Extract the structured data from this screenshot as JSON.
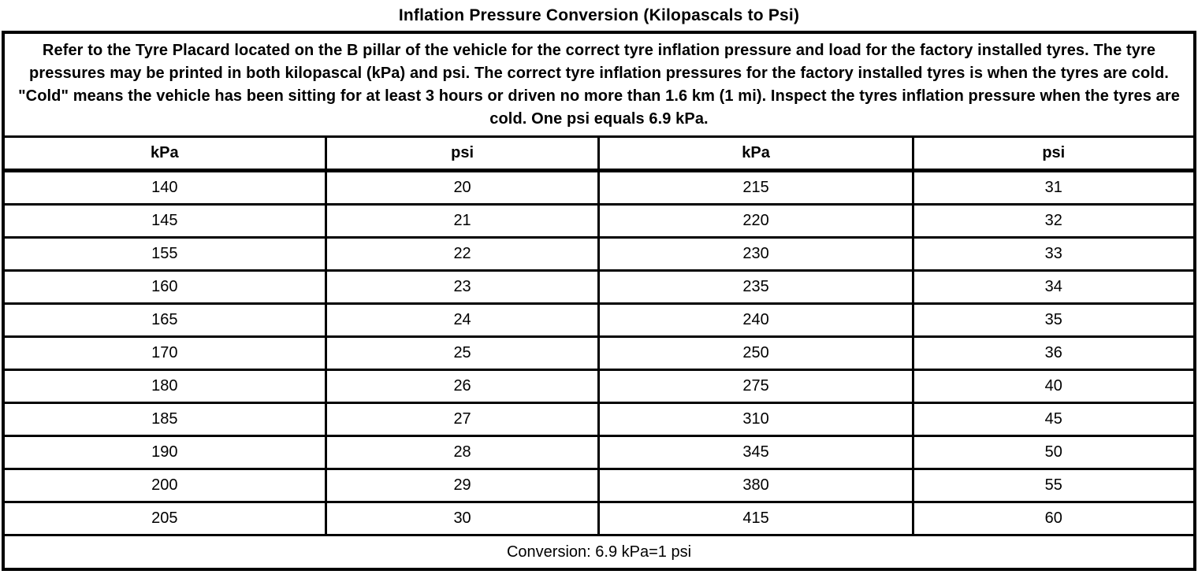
{
  "title": "Inflation Pressure Conversion (Kilopascals to Psi)",
  "intro": "Refer to the Tyre Placard located on the B pillar of the vehicle for the correct tyre inflation pressure and load for the factory installed tyres. The tyre pressures may be printed in both kilopascal (kPa) and psi. The correct tyre inflation pressures for the factory installed tyres is when the tyres are cold. \"Cold\" means the vehicle has been sitting for at least 3 hours or driven no more than 1.6 km (1 mi). Inspect the tyres inflation pressure when the tyres are cold. One psi equals 6.9 kPa.",
  "table": {
    "headers": [
      "kPa",
      "psi",
      "kPa",
      "psi"
    ],
    "rows": [
      [
        "140",
        "20",
        "215",
        "31"
      ],
      [
        "145",
        "21",
        "220",
        "32"
      ],
      [
        "155",
        "22",
        "230",
        "33"
      ],
      [
        "160",
        "23",
        "235",
        "34"
      ],
      [
        "165",
        "24",
        "240",
        "35"
      ],
      [
        "170",
        "25",
        "250",
        "36"
      ],
      [
        "180",
        "26",
        "275",
        "40"
      ],
      [
        "185",
        "27",
        "310",
        "45"
      ],
      [
        "190",
        "28",
        "345",
        "50"
      ],
      [
        "200",
        "29",
        "380",
        "55"
      ],
      [
        "205",
        "30",
        "415",
        "60"
      ]
    ],
    "footer": "Conversion: 6.9 kPa=1 psi"
  },
  "colors": {
    "border": "#000000",
    "text": "#000000",
    "background": "#ffffff"
  }
}
